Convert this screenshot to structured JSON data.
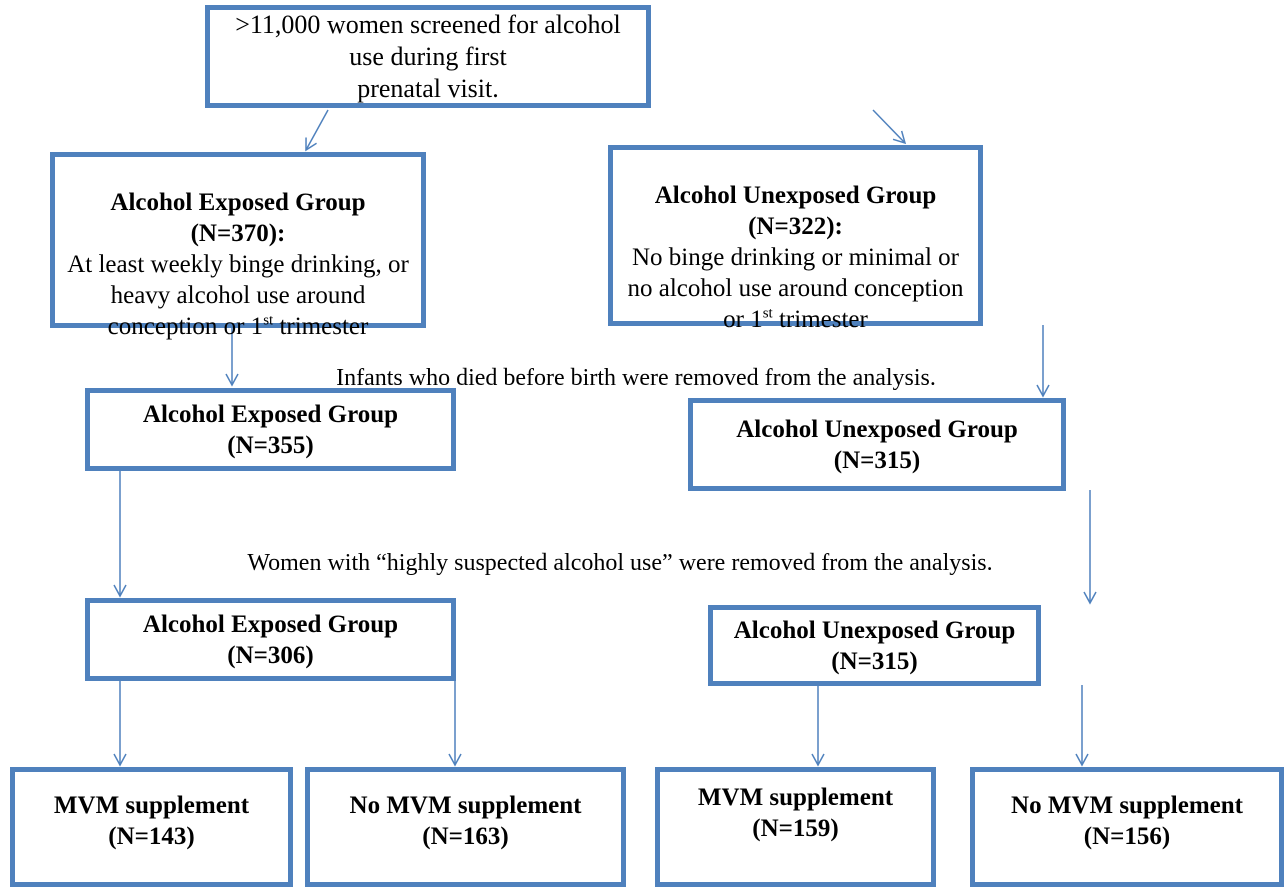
{
  "nodes": [
    {
      "lines": [
        ">11,000 women screened for alcohol use during first",
        "prenatal visit."
      ]
    },
    {
      "title": "Alcohol Exposed Group (N=370):",
      "body": "At least weekly binge drinking, or heavy alcohol use around conception or 1",
      "sup": "st",
      "after": " trimester"
    },
    {
      "title": "Alcohol Unexposed Group (N=322):",
      "body": "No binge drinking or minimal or no alcohol use around conception or 1",
      "sup": "st",
      "after": " trimester"
    },
    {
      "lines": [
        "Alcohol Exposed Group",
        "(N=355)"
      ]
    },
    {
      "lines": [
        "Alcohol Unexposed Group",
        "(N=315)"
      ]
    },
    {
      "lines": [
        "Alcohol Exposed Group",
        "(N=306)"
      ]
    },
    {
      "lines": [
        "Alcohol Unexposed Group",
        "(N=315)"
      ]
    },
    {
      "lines": [
        "MVM supplement",
        "(N=143)"
      ]
    },
    {
      "lines": [
        "No MVM supplement",
        "(N=163)"
      ]
    },
    {
      "lines": [
        "MVM supplement",
        "(N=159)"
      ]
    },
    {
      "lines": [
        "No MVM supplement",
        "(N=156)"
      ]
    }
  ],
  "notes": [
    "Infants who died before birth were removed from the analysis.",
    "Women with “highly suspected alcohol use” were removed from the analysis."
  ]
}
